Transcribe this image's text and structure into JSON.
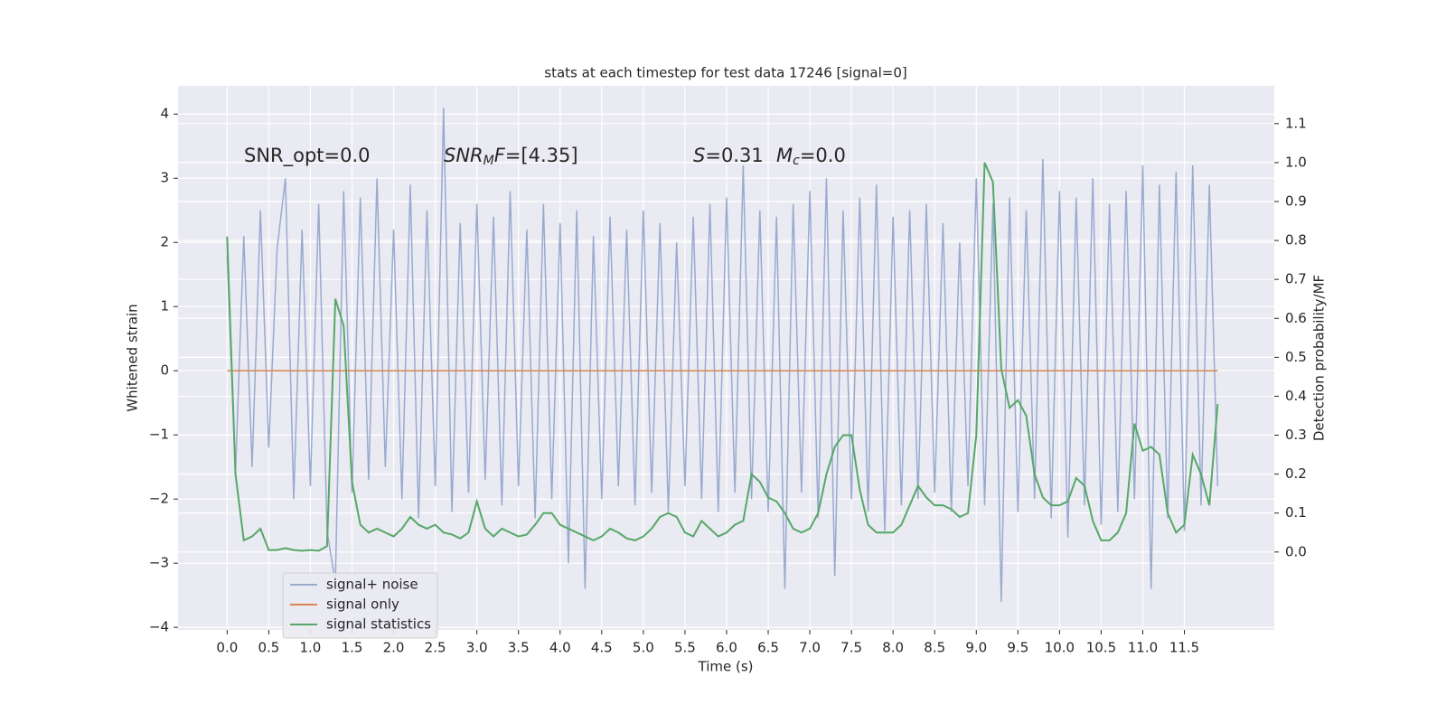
{
  "chart_data": {
    "type": "line",
    "title": "stats at each timestep for test data 17246 [signal=0]",
    "xlabel": "Time (s)",
    "ylabel": "Whitened strain",
    "y2label": "Detection probability/MF",
    "annotations": [
      [
        {
          "text": "SNR_opt=0.0"
        }
      ],
      [
        {
          "text": "SNR",
          "style": "italic"
        },
        {
          "text": "M",
          "style": "sub"
        },
        {
          "text": "F",
          "style": "italic"
        },
        {
          "text": "=[4.35]"
        }
      ],
      [
        {
          "text": "S",
          "style": "italic"
        },
        {
          "text": "=0.31"
        }
      ],
      [
        {
          "text": "M",
          "style": "italic"
        },
        {
          "text": "c",
          "style": "sub"
        },
        {
          "text": "=0.0"
        }
      ]
    ],
    "x": [
      0,
      0.1,
      0.2,
      0.3,
      0.4,
      0.5,
      0.6,
      0.7,
      0.8,
      0.9,
      1,
      1.1,
      1.2,
      1.3,
      1.4,
      1.5,
      1.6,
      1.7,
      1.8,
      1.9,
      2,
      2.1,
      2.2,
      2.3,
      2.4,
      2.5,
      2.6,
      2.7,
      2.8,
      2.9,
      3,
      3.1,
      3.2,
      3.3,
      3.4,
      3.5,
      3.6,
      3.7,
      3.8,
      3.9,
      4,
      4.1,
      4.2,
      4.3,
      4.4,
      4.5,
      4.6,
      4.7,
      4.8,
      4.9,
      5,
      5.1,
      5.2,
      5.3,
      5.4,
      5.5,
      5.6,
      5.7,
      5.8,
      5.9,
      6,
      6.1,
      6.2,
      6.3,
      6.4,
      6.5,
      6.6,
      6.7,
      6.8,
      6.9,
      7,
      7.1,
      7.2,
      7.3,
      7.4,
      7.5,
      7.6,
      7.7,
      7.8,
      7.9,
      8,
      8.1,
      8.2,
      8.3,
      8.4,
      8.5,
      8.6,
      8.7,
      8.8,
      8.9,
      9,
      9.1,
      9.2,
      9.3,
      9.4,
      9.5,
      9.6,
      9.7,
      9.8,
      9.9,
      10,
      10.1,
      10.2,
      10.3,
      10.4,
      10.5,
      10.6,
      10.7,
      10.8,
      10.9,
      11,
      11.1,
      11.2,
      11.3,
      11.4,
      11.5,
      11.6,
      11.7,
      11.8,
      11.9
    ],
    "series": [
      {
        "name": "signal+ noise",
        "color": "#99aacf",
        "values": [
          1.8,
          -1.6,
          2.1,
          -1.5,
          2.5,
          -1.2,
          1.9,
          3.0,
          -2.0,
          2.2,
          -1.8,
          2.6,
          -2.5,
          -3.3,
          2.8,
          -1.9,
          2.7,
          -1.7,
          3.0,
          -1.5,
          2.2,
          -2.0,
          2.9,
          -2.3,
          2.5,
          -1.8,
          4.1,
          -2.2,
          2.3,
          -1.9,
          2.6,
          -1.7,
          2.4,
          -2.1,
          2.8,
          -1.8,
          2.2,
          -2.3,
          2.6,
          -2.0,
          2.3,
          -3.0,
          2.5,
          -3.4,
          2.1,
          -2.0,
          2.4,
          -1.8,
          2.2,
          -2.1,
          2.5,
          -1.9,
          2.3,
          -2.2,
          2.0,
          -1.8,
          2.4,
          -2.0,
          2.6,
          -2.2,
          2.7,
          -1.9,
          3.2,
          -2.0,
          2.5,
          -2.2,
          2.4,
          -3.4,
          2.6,
          -1.9,
          2.8,
          -2.3,
          3.0,
          -3.2,
          2.5,
          -2.0,
          2.7,
          -2.2,
          2.9,
          -2.5,
          2.4,
          -2.1,
          2.5,
          -2.0,
          2.6,
          -1.9,
          2.3,
          -2.2,
          2.0,
          -1.8,
          3.0,
          -2.1,
          2.6,
          -3.6,
          2.7,
          -2.2,
          2.5,
          -2.0,
          3.3,
          -2.3,
          2.8,
          -2.6,
          2.7,
          -2.1,
          3.0,
          -2.4,
          2.6,
          -2.2,
          2.8,
          -2.0,
          3.2,
          -3.4,
          2.9,
          -2.3,
          3.1,
          -2.5,
          3.2,
          -2.1,
          2.9,
          -1.8
        ]
      },
      {
        "name": "signal only",
        "color": "#dd8452",
        "values": [
          0,
          0,
          0,
          0,
          0,
          0,
          0,
          0,
          0,
          0,
          0,
          0,
          0,
          0,
          0,
          0,
          0,
          0,
          0,
          0,
          0,
          0,
          0,
          0,
          0,
          0,
          0,
          0,
          0,
          0,
          0,
          0,
          0,
          0,
          0,
          0,
          0,
          0,
          0,
          0,
          0,
          0,
          0,
          0,
          0,
          0,
          0,
          0,
          0,
          0,
          0,
          0,
          0,
          0,
          0,
          0,
          0,
          0,
          0,
          0,
          0,
          0,
          0,
          0,
          0,
          0,
          0,
          0,
          0,
          0,
          0,
          0,
          0,
          0,
          0,
          0,
          0,
          0,
          0,
          0,
          0,
          0,
          0,
          0,
          0,
          0,
          0,
          0,
          0,
          0,
          0,
          0,
          0,
          0,
          0,
          0,
          0,
          0,
          0,
          0,
          0,
          0,
          0,
          0,
          0,
          0,
          0,
          0,
          0,
          0,
          0,
          0,
          0,
          0,
          0,
          0,
          0,
          0,
          0,
          0
        ]
      },
      {
        "name": "signal statistics",
        "color": "#55a868",
        "axis": "y2",
        "values": [
          0.81,
          0.2,
          0.03,
          0.04,
          0.06,
          0.005,
          0.005,
          0.01,
          0.005,
          0.003,
          0.005,
          0.003,
          0.015,
          0.65,
          0.58,
          0.18,
          0.07,
          0.05,
          0.06,
          0.05,
          0.04,
          0.06,
          0.09,
          0.07,
          0.06,
          0.07,
          0.05,
          0.045,
          0.035,
          0.05,
          0.13,
          0.06,
          0.04,
          0.06,
          0.05,
          0.04,
          0.045,
          0.07,
          0.1,
          0.1,
          0.07,
          0.06,
          0.05,
          0.04,
          0.03,
          0.04,
          0.06,
          0.05,
          0.035,
          0.03,
          0.04,
          0.06,
          0.09,
          0.1,
          0.09,
          0.05,
          0.04,
          0.08,
          0.06,
          0.04,
          0.05,
          0.07,
          0.08,
          0.2,
          0.18,
          0.14,
          0.13,
          0.1,
          0.06,
          0.05,
          0.06,
          0.1,
          0.2,
          0.27,
          0.3,
          0.3,
          0.16,
          0.07,
          0.05,
          0.05,
          0.05,
          0.07,
          0.12,
          0.17,
          0.14,
          0.12,
          0.12,
          0.11,
          0.09,
          0.1,
          0.3,
          1.0,
          0.95,
          0.47,
          0.37,
          0.39,
          0.35,
          0.2,
          0.14,
          0.12,
          0.12,
          0.13,
          0.19,
          0.17,
          0.08,
          0.03,
          0.03,
          0.05,
          0.1,
          0.33,
          0.26,
          0.27,
          0.25,
          0.1,
          0.05,
          0.07,
          0.25,
          0.2,
          0.12,
          0.38
        ]
      }
    ],
    "xlim": [
      -0.59,
      12.58
    ],
    "xticks": [
      {
        "value": 0,
        "label": "0.0"
      },
      0.5,
      {
        "value": 1,
        "label": "1.0"
      },
      1.5,
      {
        "value": 2,
        "label": "2.0"
      },
      2.5,
      {
        "value": 3,
        "label": "3.0"
      },
      3.5,
      {
        "value": 4,
        "label": "4.0"
      },
      4.5,
      {
        "value": 5,
        "label": "5.0"
      },
      5.5,
      {
        "value": 6,
        "label": "6.0"
      },
      6.5,
      {
        "value": 7,
        "label": "7.0"
      },
      7.5,
      {
        "value": 8,
        "label": "8.0"
      },
      8.5,
      {
        "value": 9,
        "label": "9.0"
      },
      9.5,
      {
        "value": 10,
        "label": "10.0"
      },
      10.5,
      {
        "value": 11,
        "label": "11.0"
      },
      11.5
    ],
    "ylim": [
      -4.04,
      4.44
    ],
    "yticks": [
      {
        "value": -4,
        "label": "−4"
      },
      {
        "value": -3,
        "label": "−3"
      },
      {
        "value": -2,
        "label": "−2"
      },
      {
        "value": -1,
        "label": "−1"
      },
      0,
      1,
      2,
      3,
      4
    ],
    "y2lim": [
      -0.2,
      1.197
    ],
    "y2ticks": [
      {
        "value": 0,
        "label": "0.0"
      },
      0.1,
      0.2,
      0.3,
      0.4,
      0.5,
      0.6,
      0.7,
      0.8,
      0.9,
      {
        "value": 1,
        "label": "1.0"
      },
      1.1
    ],
    "grid": true,
    "legend": "lower left",
    "background": "#eaeaf2"
  }
}
